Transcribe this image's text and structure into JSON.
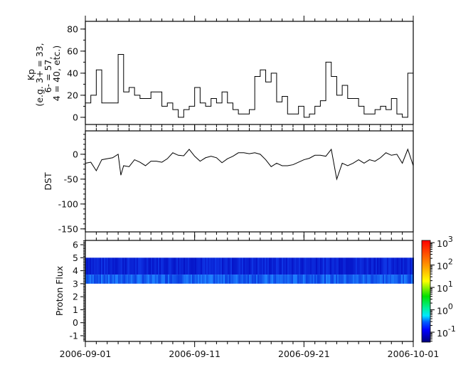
{
  "chart_data": [
    {
      "type": "line",
      "ylabel_lines": [
        "Kp",
        "(e.g. 3+ = 33,",
        "6- = 57,",
        "4 = 40, etc.)"
      ],
      "ylim": [
        -6.5,
        87
      ],
      "yticks": [
        0,
        20,
        40,
        60,
        80
      ],
      "xlim": [
        "2006-09-01",
        "2006-10-01"
      ],
      "step": true,
      "x": [
        "2006-09-01T00",
        "2006-09-01T12",
        "2006-09-02T00",
        "2006-09-02T12",
        "2006-09-03T00",
        "2006-09-03T12",
        "2006-09-04T00",
        "2006-09-04T12",
        "2006-09-05T00",
        "2006-09-05T12",
        "2006-09-06T00",
        "2006-09-06T12",
        "2006-09-07T00",
        "2006-09-07T12",
        "2006-09-08T00",
        "2006-09-08T12",
        "2006-09-09T00",
        "2006-09-09T12",
        "2006-09-10T00",
        "2006-09-10T12",
        "2006-09-11T00",
        "2006-09-11T12",
        "2006-09-12T00",
        "2006-09-12T12",
        "2006-09-13T00",
        "2006-09-13T12",
        "2006-09-14T00",
        "2006-09-14T12",
        "2006-09-15T00",
        "2006-09-15T12",
        "2006-09-16T00",
        "2006-09-16T12",
        "2006-09-17T00",
        "2006-09-17T12",
        "2006-09-18T00",
        "2006-09-18T12",
        "2006-09-19T00",
        "2006-09-19T12",
        "2006-09-20T00",
        "2006-09-20T12",
        "2006-09-21T00",
        "2006-09-21T12",
        "2006-09-22T00",
        "2006-09-22T12",
        "2006-09-23T00",
        "2006-09-23T12",
        "2006-09-24T00",
        "2006-09-24T12",
        "2006-09-25T00",
        "2006-09-25T12",
        "2006-09-26T00",
        "2006-09-26T12",
        "2006-09-27T00",
        "2006-09-27T12",
        "2006-09-28T00",
        "2006-09-28T12",
        "2006-09-29T00",
        "2006-09-29T12",
        "2006-09-30T00",
        "2006-09-30T12",
        "2006-10-01T00"
      ],
      "values": [
        13,
        20,
        43,
        13,
        13,
        13,
        57,
        23,
        27,
        20,
        17,
        17,
        23,
        23,
        10,
        13,
        7,
        0,
        7,
        10,
        27,
        13,
        10,
        17,
        13,
        23,
        13,
        7,
        3,
        3,
        7,
        37,
        43,
        32,
        40,
        14,
        19,
        3,
        3,
        10,
        0,
        3,
        10,
        15,
        50,
        37,
        20,
        29,
        17,
        17,
        10,
        3,
        3,
        7,
        10,
        7,
        17,
        3,
        0,
        40,
        47
      ]
    },
    {
      "type": "line",
      "ylabel": "DST",
      "ylim": [
        -156,
        47
      ],
      "yticks": [
        0,
        -50,
        -100,
        -150
      ],
      "xlim": [
        "2006-09-01",
        "2006-10-01"
      ],
      "x": [
        "2006-09-01T00",
        "2006-09-01T12",
        "2006-09-02T00",
        "2006-09-02T12",
        "2006-09-03T00",
        "2006-09-03T12",
        "2006-09-04T00",
        "2006-09-04T06",
        "2006-09-04T12",
        "2006-09-05T00",
        "2006-09-05T12",
        "2006-09-06T00",
        "2006-09-06T12",
        "2006-09-07T00",
        "2006-09-07T12",
        "2006-09-08T00",
        "2006-09-08T12",
        "2006-09-09T00",
        "2006-09-09T12",
        "2006-09-10T00",
        "2006-09-10T12",
        "2006-09-11T00",
        "2006-09-11T12",
        "2006-09-12T00",
        "2006-09-12T12",
        "2006-09-13T00",
        "2006-09-13T12",
        "2006-09-14T00",
        "2006-09-14T12",
        "2006-09-15T00",
        "2006-09-15T12",
        "2006-09-16T00",
        "2006-09-16T12",
        "2006-09-17T00",
        "2006-09-17T12",
        "2006-09-18T00",
        "2006-09-18T12",
        "2006-09-19T00",
        "2006-09-19T12",
        "2006-09-20T00",
        "2006-09-20T12",
        "2006-09-21T00",
        "2006-09-21T12",
        "2006-09-22T00",
        "2006-09-22T12",
        "2006-09-23T00",
        "2006-09-23T12",
        "2006-09-24T00",
        "2006-09-24T12",
        "2006-09-25T00",
        "2006-09-25T12",
        "2006-09-26T00",
        "2006-09-26T12",
        "2006-09-27T00",
        "2006-09-27T12",
        "2006-09-28T00",
        "2006-09-28T12",
        "2006-09-29T00",
        "2006-09-29T12",
        "2006-09-30T00",
        "2006-09-30T12",
        "2006-10-01T00"
      ],
      "values": [
        -18,
        -16,
        -33,
        -11,
        -9,
        -7,
        0,
        -42,
        -23,
        -25,
        -11,
        -16,
        -23,
        -14,
        -14,
        -16,
        -9,
        3,
        -2,
        -3,
        10,
        -4,
        -14,
        -7,
        -4,
        -7,
        -17,
        -9,
        -4,
        3,
        3,
        1,
        3,
        0,
        -11,
        -25,
        -18,
        -23,
        -23,
        -21,
        -16,
        -11,
        -8,
        -2,
        -2,
        -4,
        10,
        -50,
        -18,
        -23,
        -18,
        -11,
        -18,
        -11,
        -14,
        -7,
        3,
        -2,
        0,
        -18,
        10,
        -23
      ]
    },
    {
      "type": "heatmap",
      "ylabel": "Proton Flux",
      "ylim": [
        -1.44,
        6.33
      ],
      "yticks": [
        6,
        5,
        4,
        3,
        2,
        1,
        0,
        -1
      ],
      "xlim": [
        "2006-09-01",
        "2006-10-01"
      ],
      "filled_y_range": [
        3,
        5
      ],
      "z_approx_range": [
        0.05,
        0.5
      ],
      "colorbar": {
        "scale": "log",
        "range": [
          0.036,
          1260
        ],
        "tick_bases": [
          "10",
          "10",
          "10",
          "10",
          "10"
        ],
        "tick_exponents": [
          "3",
          "2",
          "1",
          "0",
          "-1"
        ],
        "tick_values": [
          1000,
          100,
          10,
          1,
          0.1
        ],
        "colormap": "jet"
      }
    }
  ],
  "xaxis": {
    "tick_labels": [
      "2006-09-01",
      "2006-09-11",
      "2006-09-21",
      "2006-10-01"
    ]
  }
}
